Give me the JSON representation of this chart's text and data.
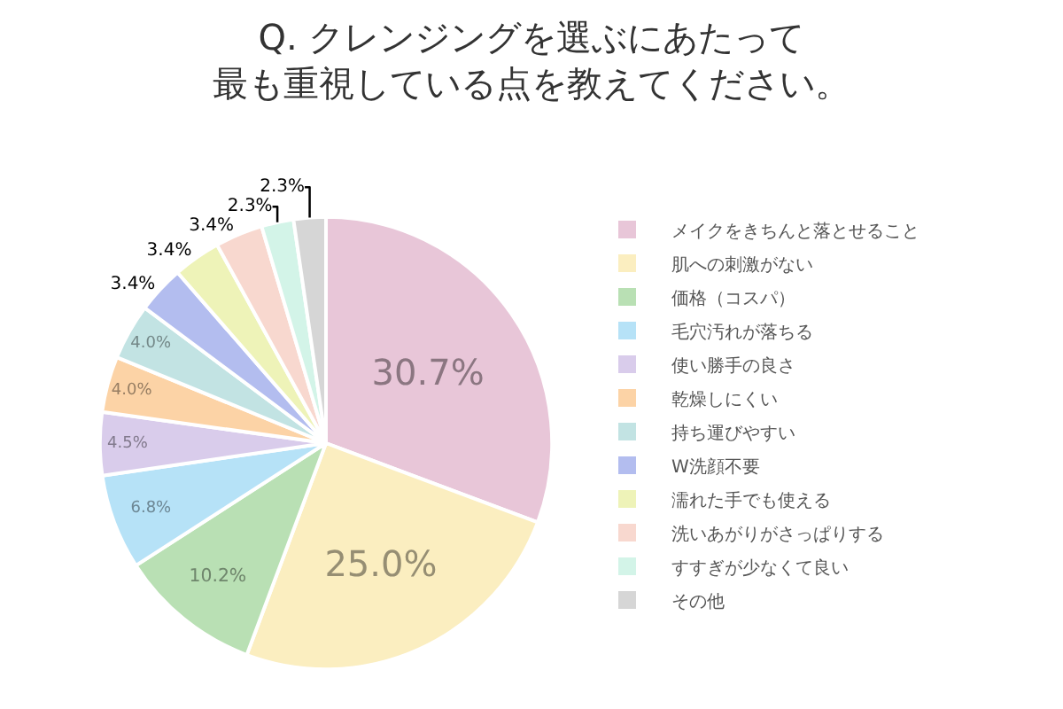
{
  "chart_data": {
    "type": "pie",
    "title": "Q. クレンジングを選ぶにあたって",
    "subtitle": "最も重視している点を教えてください。",
    "categories": [
      "メイクをきちんと落とせること",
      "肌への刺激がない",
      "価格（コスパ）",
      "毛穴汚れが落ちる",
      "使い勝手の良さ",
      "乾燥しにくい",
      "持ち運びやすい",
      "W洗顔不要",
      "濡れた手でも使える",
      "洗いあがりがさっぱりする",
      "すすぎが少なくて良い",
      "その他"
    ],
    "values": [
      30.7,
      25.0,
      10.2,
      6.8,
      4.5,
      4.0,
      4.0,
      3.4,
      3.4,
      3.4,
      2.3,
      2.3
    ],
    "value_labels": [
      "30.7%",
      "25.0%",
      "10.2%",
      "6.8%",
      "4.5%",
      "4.0%",
      "4.0%",
      "3.4%",
      "3.4%",
      "3.4%",
      "2.3%",
      "2.3%"
    ],
    "colors": [
      "#e8c6d8",
      "#fbeec0",
      "#b9e0b4",
      "#b6e2f7",
      "#d9cceb",
      "#fcd3a6",
      "#c2e3e3",
      "#b3bdef",
      "#eef3b8",
      "#f8d8cf",
      "#d3f4e8",
      "#d6d6d6"
    ],
    "legend": "right"
  }
}
